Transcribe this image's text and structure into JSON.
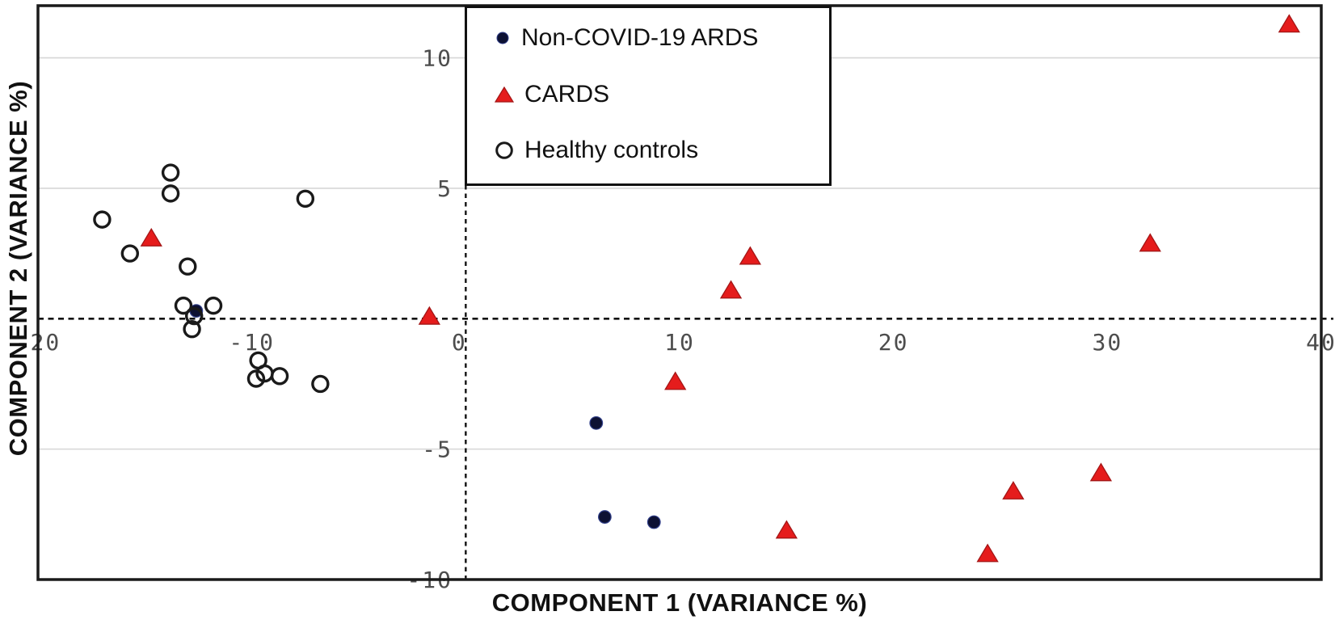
{
  "chart_data": {
    "type": "scatter",
    "title": "",
    "xlabel": "COMPONENT 1 (VARIANCE %)",
    "ylabel": "COMPONENT 2 (VARIANCE %)",
    "xlim": [
      -20,
      40
    ],
    "ylim": [
      -10,
      12
    ],
    "x_ticks": [
      -20,
      -10,
      0,
      10,
      20,
      30,
      40
    ],
    "y_tick_labels_left_of_axis": [
      10,
      5,
      -5,
      -10
    ],
    "origin_label": "0",
    "y_gridlines": [
      10,
      5,
      -5
    ],
    "grid": "horizontal light-gray lines only",
    "reference_lines": {
      "vertical_x": 0,
      "horizontal_y": 0,
      "style": "dashed black"
    },
    "legend_position": "top-center boxed",
    "series": [
      {
        "name": "Non-COVID-19 ARDS",
        "marker": "filled-circle",
        "color": "#0d1133",
        "points": [
          [
            -12.6,
            0.3
          ],
          [
            6.1,
            -4.0
          ],
          [
            6.5,
            -7.6
          ],
          [
            8.8,
            -7.8
          ]
        ]
      },
      {
        "name": "CARDS",
        "marker": "filled-triangle",
        "color": "#e51c1c",
        "points": [
          [
            -14.7,
            3.1
          ],
          [
            -1.7,
            0.1
          ],
          [
            12.4,
            1.1
          ],
          [
            13.3,
            2.4
          ],
          [
            32.0,
            2.9
          ],
          [
            38.5,
            11.3
          ],
          [
            9.8,
            -2.4
          ],
          [
            15.0,
            -8.1
          ],
          [
            24.4,
            -9.0
          ],
          [
            25.6,
            -6.6
          ],
          [
            29.7,
            -5.9
          ]
        ]
      },
      {
        "name": "Healthy controls",
        "marker": "open-circle",
        "color": "#1a1a1a",
        "points": [
          [
            -13.8,
            5.6
          ],
          [
            -13.8,
            4.8
          ],
          [
            -17.0,
            3.8
          ],
          [
            -15.7,
            2.5
          ],
          [
            -13.0,
            2.0
          ],
          [
            -7.5,
            4.6
          ],
          [
            -13.2,
            0.5
          ],
          [
            -11.8,
            0.5
          ],
          [
            -12.7,
            0.1
          ],
          [
            -12.8,
            -0.4
          ],
          [
            -9.7,
            -1.6
          ],
          [
            -9.8,
            -2.3
          ],
          [
            -9.4,
            -2.1
          ],
          [
            -8.7,
            -2.2
          ],
          [
            -6.8,
            -2.5
          ]
        ]
      }
    ],
    "colors": {
      "grid": "#d6d6d6",
      "axis_border": "#1a1a1a",
      "tick_label": "#4d4d4d",
      "dashed_line": "#111111",
      "cards_red": "#e51c1c",
      "ards_navy": "#0d1133"
    }
  },
  "legend": {
    "items": [
      {
        "label": "Non-COVID-19 ARDS",
        "marker": "filled-circle"
      },
      {
        "label": "CARDS",
        "marker": "filled-triangle"
      },
      {
        "label": "Healthy controls",
        "marker": "open-circle"
      }
    ]
  }
}
